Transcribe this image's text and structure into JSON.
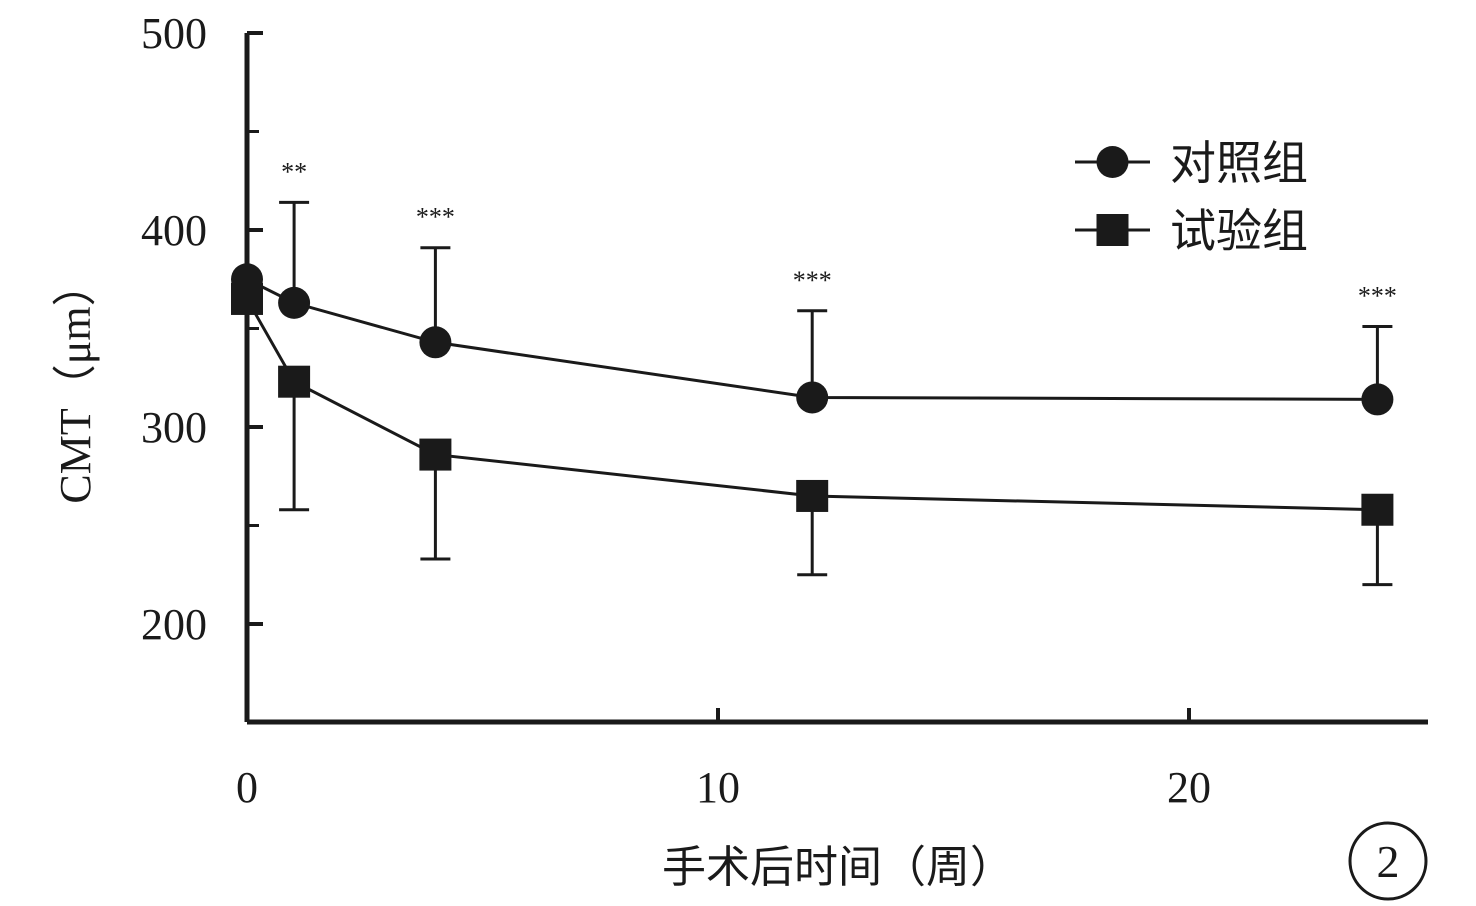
{
  "chart_data": {
    "type": "line",
    "xlabel": "手术后时间（周）",
    "ylabel": "CMT（μm）",
    "xlim": [
      0,
      25
    ],
    "ylim": [
      150,
      500
    ],
    "xticks": [
      0,
      10,
      20
    ],
    "yticks": [
      200,
      300,
      400,
      500
    ],
    "x": [
      0,
      1,
      4,
      12,
      24
    ],
    "series": [
      {
        "name": "对照组",
        "marker": "circle",
        "values": [
          375,
          363,
          343,
          315,
          314
        ],
        "error_upper": [
          null,
          414,
          391,
          359,
          351
        ],
        "error_lower": [
          null,
          null,
          null,
          null,
          null
        ]
      },
      {
        "name": "试验组",
        "marker": "square",
        "values": [
          365,
          323,
          286,
          265,
          258
        ],
        "error_upper": [
          null,
          null,
          null,
          null,
          null
        ],
        "error_lower": [
          null,
          258,
          233,
          225,
          220
        ]
      }
    ],
    "significance": [
      {
        "x": 1,
        "label": "**"
      },
      {
        "x": 4,
        "label": "***"
      },
      {
        "x": 12,
        "label": "***"
      },
      {
        "x": 24,
        "label": "***"
      }
    ],
    "legend_position": "top-right",
    "grid": false,
    "line_color": "#1a1a1a",
    "panel_label": "2"
  }
}
